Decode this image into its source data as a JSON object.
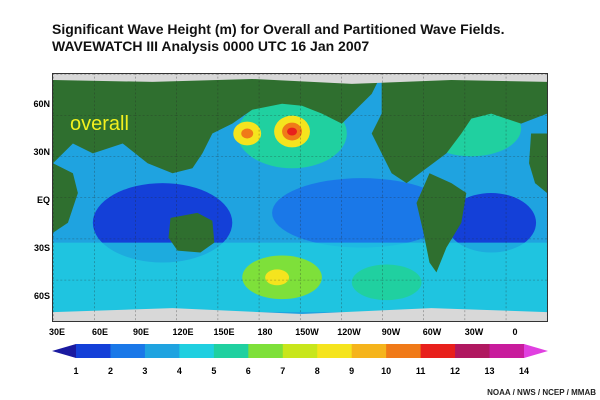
{
  "title": {
    "line1": "Significant Wave Height (m) for Overall and Partitioned Wave Fields.",
    "line2": "WAVEWATCH III Analysis 0000 UTC 16 Jan 2007"
  },
  "map": {
    "field_label": "overall",
    "latitude_labels": [
      "60N",
      "30N",
      "EQ",
      "30S",
      "60S"
    ],
    "longitude_labels": [
      "30E",
      "60E",
      "90E",
      "120E",
      "150E",
      "180",
      "150W",
      "120W",
      "90W",
      "60W",
      "30W",
      "0"
    ],
    "colors": {
      "ocean_low": "#1440d8",
      "ocean_mid": "#1fa3e0",
      "ocean_midhigh": "#20d0c8",
      "land": "#2f6f2f",
      "ice": "#d8d8d8",
      "high": "#f5e41e",
      "peak": "#e8201c"
    }
  },
  "colorbar": {
    "labels": [
      "1",
      "2",
      "3",
      "4",
      "5",
      "6",
      "7",
      "8",
      "9",
      "10",
      "11",
      "12",
      "13",
      "14"
    ],
    "colors": [
      "#1a1aa0",
      "#1440d8",
      "#1a78e8",
      "#1fa3e0",
      "#20cfe0",
      "#20d0a0",
      "#7ee03a",
      "#c8e61c",
      "#f5e41e",
      "#f5b41c",
      "#f07a18",
      "#e8201c",
      "#b01860",
      "#c81c9c",
      "#e040e0"
    ]
  },
  "credit": "NOAA / NWS / NCEP / MMAB"
}
